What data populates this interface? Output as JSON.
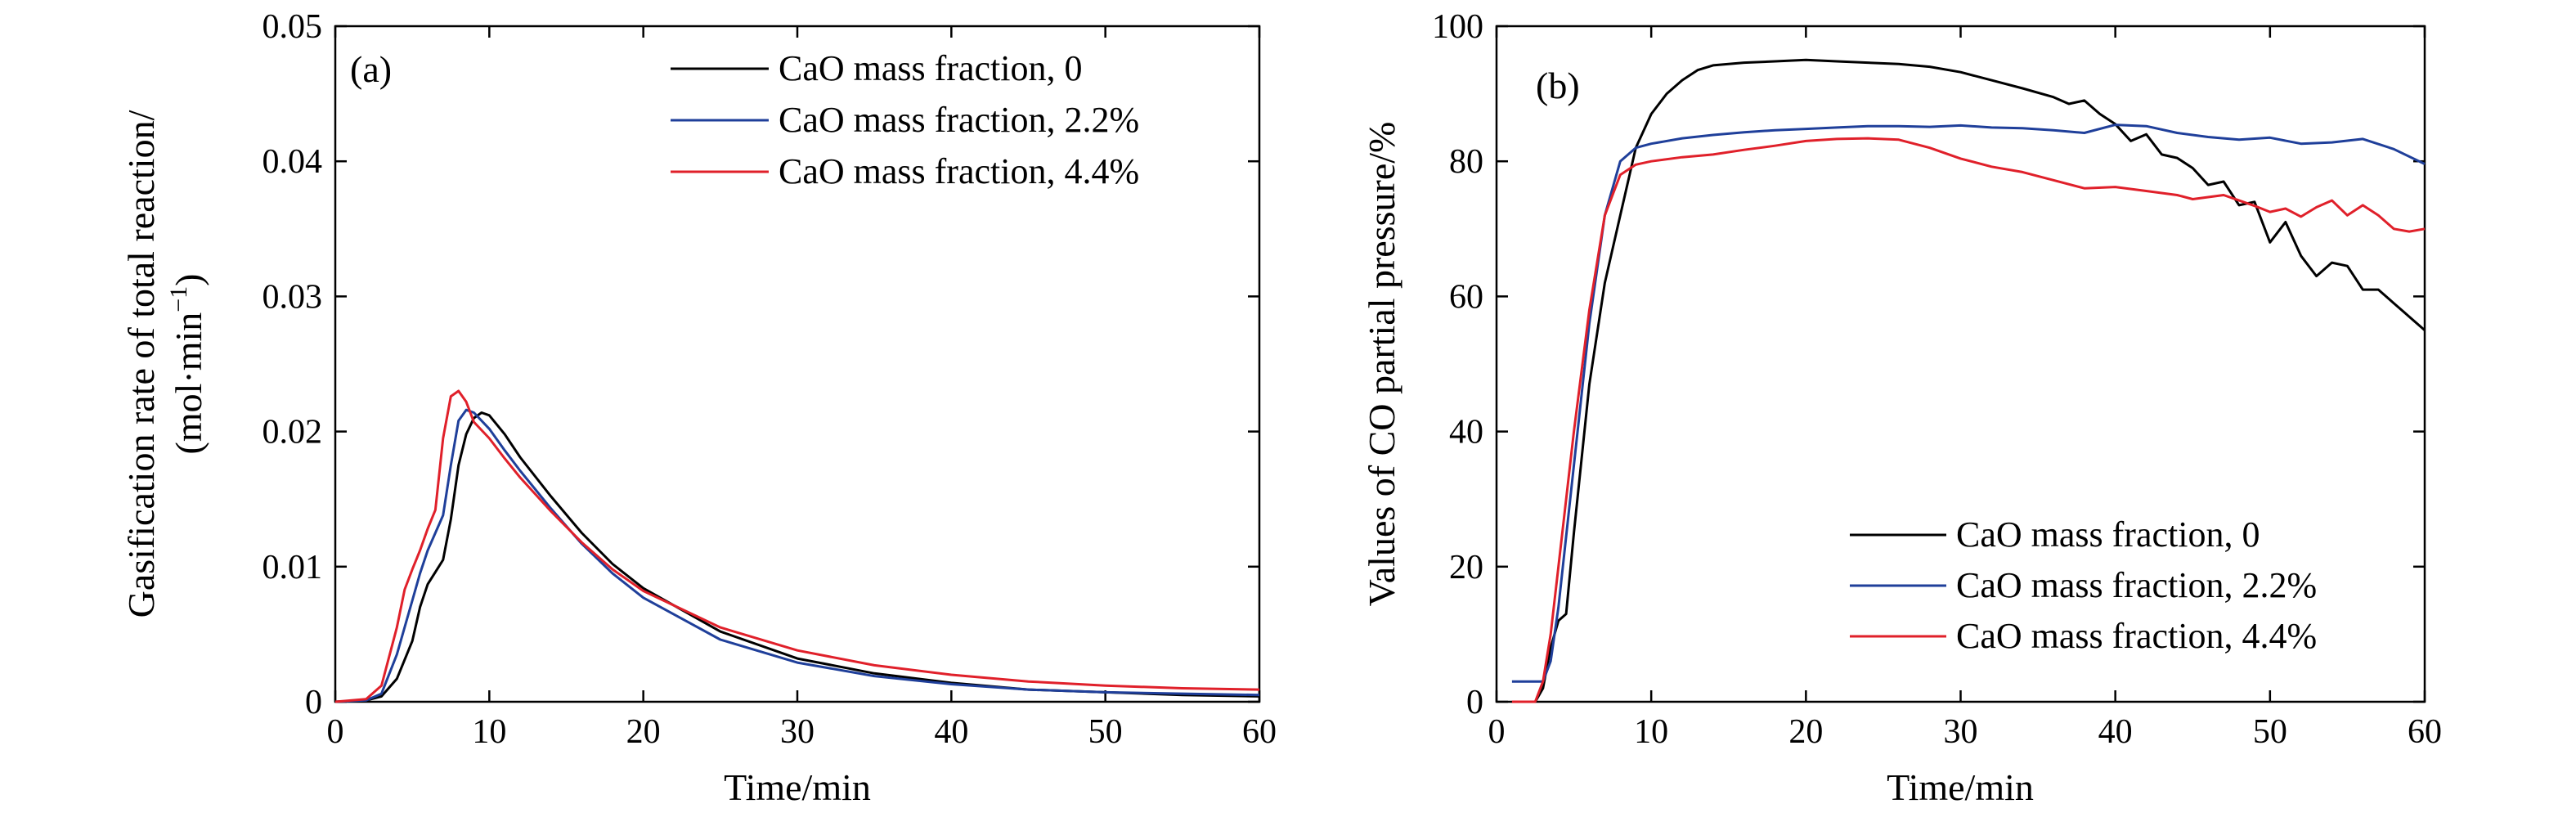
{
  "chart_data": [
    {
      "type": "line",
      "panel_label": "(a)",
      "xlabel": "Time/min",
      "ylabel_line1": "Gasification rate of total reaction/",
      "ylabel_line2": "(mol·min",
      "ylabel_sup": "−1",
      "ylabel_close": ")",
      "xlim": [
        0,
        60
      ],
      "ylim": [
        0,
        0.05
      ],
      "xticks": [
        0,
        10,
        20,
        30,
        40,
        50,
        60
      ],
      "yticks": [
        0,
        0.01,
        0.02,
        0.03,
        0.04,
        0.05
      ],
      "ytick_labels": [
        "0",
        "0.01",
        "0.02",
        "0.03",
        "0.04",
        "0.05"
      ],
      "grid": false,
      "legend_position": "top-right",
      "series": [
        {
          "name": "CaO mass fraction, 0",
          "color": "#000000",
          "x": [
            0,
            2,
            3,
            4,
            5,
            5.5,
            6,
            6.5,
            7,
            7.5,
            8,
            8.5,
            9,
            9.5,
            10,
            11,
            12,
            14,
            16,
            18,
            20,
            25,
            30,
            35,
            40,
            45,
            50,
            55,
            60
          ],
          "y": [
            0,
            0.0001,
            0.0004,
            0.0017,
            0.0045,
            0.007,
            0.0087,
            0.0096,
            0.0105,
            0.0135,
            0.0175,
            0.0198,
            0.021,
            0.0214,
            0.0212,
            0.0198,
            0.0181,
            0.0152,
            0.0125,
            0.0102,
            0.0084,
            0.0052,
            0.0032,
            0.0021,
            0.0014,
            0.0009,
            0.0007,
            0.0005,
            0.0004
          ]
        },
        {
          "name": "CaO mass fraction, 2.2%",
          "color": "#1f3f9a",
          "x": [
            0,
            2,
            3,
            4,
            5,
            5.5,
            6,
            6.5,
            7,
            7.5,
            8,
            8.5,
            9,
            10,
            11,
            12,
            14,
            16,
            18,
            20,
            25,
            30,
            35,
            40,
            45,
            50,
            55,
            60
          ],
          "y": [
            0,
            0.0001,
            0.0006,
            0.0035,
            0.0075,
            0.0095,
            0.0112,
            0.0125,
            0.0138,
            0.0175,
            0.0208,
            0.0216,
            0.0214,
            0.0202,
            0.0186,
            0.0171,
            0.0143,
            0.0117,
            0.0095,
            0.0077,
            0.0046,
            0.0029,
            0.0019,
            0.0013,
            0.0009,
            0.0007,
            0.0006,
            0.0005
          ]
        },
        {
          "name": "CaO mass fraction, 4.4%",
          "color": "#e0202a",
          "x": [
            0,
            2,
            3,
            4,
            4.5,
            5,
            5.5,
            6,
            6.5,
            7,
            7.5,
            8,
            8.5,
            9,
            10,
            11,
            12,
            14,
            16,
            18,
            20,
            25,
            30,
            35,
            40,
            45,
            50,
            55,
            60
          ],
          "y": [
            0,
            0.0002,
            0.0012,
            0.0055,
            0.0083,
            0.0098,
            0.0112,
            0.0128,
            0.0142,
            0.0195,
            0.0226,
            0.023,
            0.0222,
            0.0207,
            0.0195,
            0.018,
            0.0166,
            0.0141,
            0.0118,
            0.0098,
            0.0082,
            0.0055,
            0.0038,
            0.0027,
            0.002,
            0.0015,
            0.0012,
            0.001,
            0.0009
          ]
        }
      ]
    },
    {
      "type": "line",
      "panel_label": "(b)",
      "xlabel": "Time/min",
      "ylabel_line1": "Values of CO partial pressure/%",
      "xlim": [
        0,
        60
      ],
      "ylim": [
        0,
        100
      ],
      "xticks": [
        0,
        10,
        20,
        30,
        40,
        50,
        60
      ],
      "yticks": [
        0,
        20,
        40,
        60,
        80,
        100
      ],
      "ytick_labels": [
        "0",
        "20",
        "40",
        "60",
        "80",
        "100"
      ],
      "grid": false,
      "legend_position": "bottom-right",
      "series": [
        {
          "name": "CaO mass fraction, 0",
          "color": "#000000",
          "x": [
            1,
            2.5,
            3,
            3.5,
            4,
            4.5,
            5,
            6,
            7,
            8,
            9,
            10,
            11,
            12,
            13,
            14,
            16,
            18,
            20,
            22,
            24,
            26,
            28,
            30,
            32,
            34,
            36,
            37,
            38,
            39,
            40,
            41,
            42,
            43,
            44,
            45,
            46,
            47,
            48,
            49,
            50,
            51,
            52,
            53,
            54,
            55,
            56,
            57,
            58,
            59,
            60
          ],
          "y": [
            0,
            0,
            2,
            8,
            12,
            13,
            25,
            47,
            62,
            72,
            82,
            87,
            90,
            92,
            93.5,
            94.2,
            94.6,
            94.8,
            95,
            94.8,
            94.6,
            94.4,
            94,
            93.2,
            92,
            90.8,
            89.5,
            88.5,
            89,
            87,
            85.5,
            83,
            84,
            81,
            80.5,
            79,
            76.5,
            77,
            73.5,
            74,
            68,
            71,
            66,
            63,
            65,
            64.5,
            61,
            61,
            59,
            57,
            55
          ]
        },
        {
          "name": "CaO mass fraction, 2.2%",
          "color": "#1f3f9a",
          "x": [
            1,
            3,
            3.5,
            4,
            5,
            6,
            7,
            8,
            9,
            10,
            12,
            14,
            16,
            18,
            20,
            22,
            24,
            26,
            28,
            30,
            32,
            34,
            36,
            38,
            40,
            42,
            44,
            46,
            48,
            50,
            52,
            54,
            56,
            58,
            60
          ],
          "y": [
            3,
            3,
            6,
            14,
            35,
            56,
            72,
            80,
            82,
            82.6,
            83.4,
            83.9,
            84.3,
            84.6,
            84.8,
            85,
            85.2,
            85.2,
            85.1,
            85.3,
            85,
            84.9,
            84.6,
            84.2,
            85.4,
            85.2,
            84.2,
            83.6,
            83.2,
            83.5,
            82.6,
            82.8,
            83.3,
            81.8,
            79.6
          ]
        },
        {
          "name": "CaO mass fraction, 4.4%",
          "color": "#e0202a",
          "x": [
            1,
            2.5,
            3,
            3.5,
            4,
            5,
            6,
            7,
            8,
            9,
            10,
            12,
            14,
            16,
            18,
            20,
            22,
            24,
            26,
            28,
            30,
            32,
            34,
            36,
            38,
            40,
            42,
            44,
            45,
            46,
            47,
            48,
            49,
            50,
            51,
            52,
            53,
            54,
            55,
            56,
            57,
            58,
            59,
            60
          ],
          "y": [
            0,
            0,
            3,
            10,
            20,
            40,
            58,
            72,
            78,
            79.5,
            80,
            80.6,
            81,
            81.7,
            82.3,
            83,
            83.3,
            83.4,
            83.2,
            82,
            80.4,
            79.2,
            78.4,
            77.2,
            76,
            76.2,
            75.6,
            75,
            74.4,
            74.7,
            75,
            74.2,
            73.4,
            72.5,
            73,
            71.8,
            73.2,
            74.2,
            72,
            73.5,
            72,
            70,
            69.6,
            70
          ]
        }
      ]
    }
  ]
}
